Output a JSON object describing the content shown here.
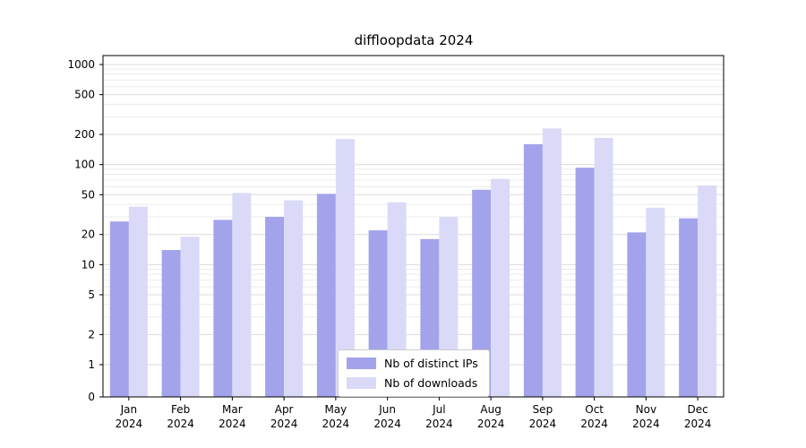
{
  "title": "diffloopdata 2024",
  "chart_data": {
    "type": "bar",
    "categories": [
      "Jan",
      "Feb",
      "Mar",
      "Apr",
      "May",
      "Jun",
      "Jul",
      "Aug",
      "Sep",
      "Oct",
      "Nov",
      "Dec"
    ],
    "year": "2024",
    "series": [
      {
        "name": "Nb of distinct IPs",
        "color": "#a3a3ec",
        "values": [
          27,
          14,
          28,
          30,
          51,
          22,
          18,
          56,
          160,
          93,
          21,
          29
        ]
      },
      {
        "name": "Nb of downloads",
        "color": "#dadaf8",
        "values": [
          38,
          19,
          52,
          44,
          180,
          42,
          30,
          72,
          230,
          185,
          37,
          62
        ]
      }
    ],
    "yscale": "symlog",
    "yticks": [
      0,
      1,
      2,
      5,
      10,
      20,
      50,
      100,
      200,
      500,
      1000
    ],
    "ylim": [
      0,
      1230
    ],
    "grid": true,
    "legend_position": "lower center"
  },
  "colors": {
    "grid_major": "#dcdcdc",
    "grid_minor": "#ececec",
    "axis": "#000000",
    "background": "#ffffff"
  }
}
